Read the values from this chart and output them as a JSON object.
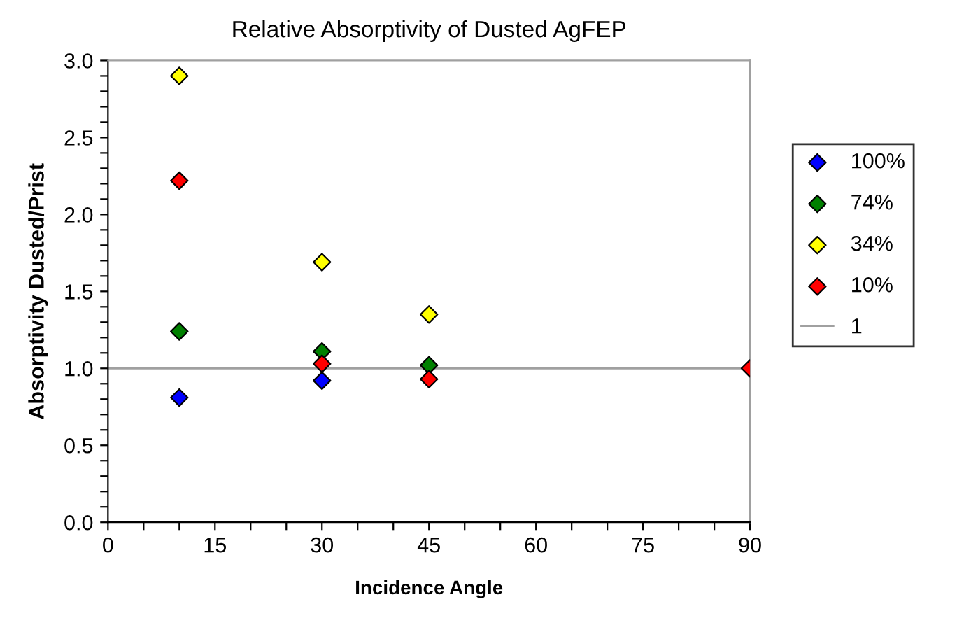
{
  "chart_data": {
    "type": "scatter",
    "title": "Relative Absorptivity of Dusted AgFEP",
    "xlabel": "Incidence Angle",
    "ylabel": "Absorptivity Dusted/Prist",
    "x": [
      10,
      30,
      45,
      90
    ],
    "series": [
      {
        "name": "100%",
        "color": "#0000ff",
        "values": [
          0.81,
          0.92,
          null,
          null
        ]
      },
      {
        "name": "74%",
        "color": "#008000",
        "values": [
          1.24,
          1.11,
          1.02,
          null
        ]
      },
      {
        "name": "34%",
        "color": "#ffff00",
        "values": [
          2.9,
          1.69,
          1.35,
          null
        ]
      },
      {
        "name": "10%",
        "color": "#ff0000",
        "values": [
          2.22,
          1.03,
          0.93,
          1.0
        ]
      },
      {
        "name": "1",
        "type": "line",
        "color": "#a0a0a0",
        "x": [
          0,
          90
        ],
        "values": [
          1,
          1
        ],
        "marker": "none"
      }
    ],
    "marker": "diamond",
    "legend": "right",
    "grid": false,
    "xlim": [
      0,
      90
    ],
    "ylim": [
      0,
      3.0
    ],
    "xticks": [
      0,
      {
        "value": 5,
        "label": null
      },
      {
        "value": 10,
        "label": null
      },
      15,
      {
        "value": 20,
        "label": null
      },
      {
        "value": 25,
        "label": null
      },
      30,
      {
        "value": 35,
        "label": null
      },
      {
        "value": 40,
        "label": null
      },
      45,
      {
        "value": 50,
        "label": null
      },
      {
        "value": 55,
        "label": null
      },
      60,
      {
        "value": 65,
        "label": null
      },
      {
        "value": 70,
        "label": null
      },
      75,
      {
        "value": 80,
        "label": null
      },
      {
        "value": 85,
        "label": null
      },
      90
    ],
    "yticks": [
      {
        "value": 0,
        "label": "0.0"
      },
      {
        "value": 0.1,
        "label": null
      },
      {
        "value": 0.2,
        "label": null
      },
      {
        "value": 0.3,
        "label": null
      },
      {
        "value": 0.4,
        "label": null
      },
      0.5,
      {
        "value": 0.6,
        "label": null
      },
      {
        "value": 0.7,
        "label": null
      },
      {
        "value": 0.8,
        "label": null
      },
      {
        "value": 0.9,
        "label": null
      },
      {
        "value": 1,
        "label": "1.0"
      },
      {
        "value": 1.1,
        "label": null
      },
      {
        "value": 1.2,
        "label": null
      },
      {
        "value": 1.3,
        "label": null
      },
      {
        "value": 1.4,
        "label": null
      },
      1.5,
      {
        "value": 1.6,
        "label": null
      },
      {
        "value": 1.7,
        "label": null
      },
      {
        "value": 1.8,
        "label": null
      },
      {
        "value": 1.9,
        "label": null
      },
      {
        "value": 2,
        "label": "2.0"
      },
      {
        "value": 2.1,
        "label": null
      },
      {
        "value": 2.2,
        "label": null
      },
      {
        "value": 2.3,
        "label": null
      },
      {
        "value": 2.4,
        "label": null
      },
      2.5,
      {
        "value": 2.6,
        "label": null
      },
      {
        "value": 2.7,
        "label": null
      },
      {
        "value": 2.8,
        "label": null
      },
      {
        "value": 2.9,
        "label": null
      },
      {
        "value": 3,
        "label": "3.0"
      }
    ]
  }
}
